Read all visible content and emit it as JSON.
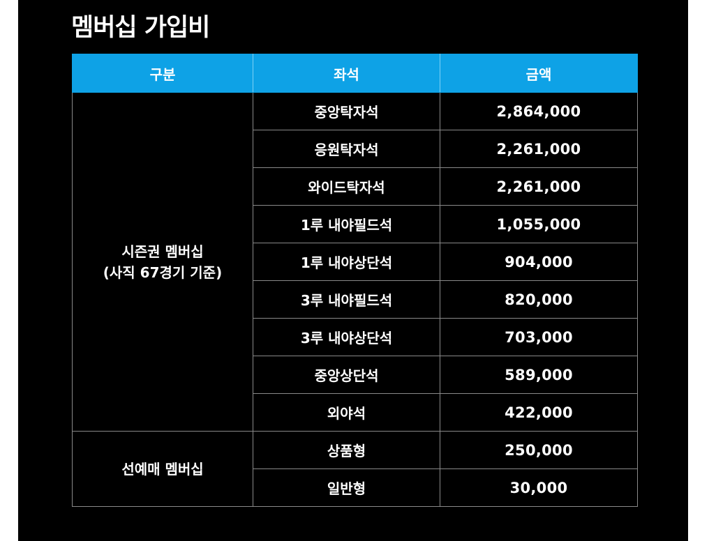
{
  "title": "멤버십 가입비",
  "table": {
    "headers": [
      "구분",
      "좌석",
      "금액"
    ],
    "groups": [
      {
        "category_lines": [
          "시즌권 멤버십",
          "(사직 67경기 기준)"
        ],
        "rows": [
          {
            "seat": "중앙탁자석",
            "price": "2,864,000"
          },
          {
            "seat": "응원탁자석",
            "price": "2,261,000"
          },
          {
            "seat": "와이드탁자석",
            "price": "2,261,000"
          },
          {
            "seat": "1루 내야필드석",
            "price": "1,055,000"
          },
          {
            "seat": "1루 내야상단석",
            "price": "904,000"
          },
          {
            "seat": "3루 내야필드석",
            "price": "820,000"
          },
          {
            "seat": "3루 내야상단석",
            "price": "703,000"
          },
          {
            "seat": "중앙상단석",
            "price": "589,000"
          },
          {
            "seat": "외야석",
            "price": "422,000"
          }
        ]
      },
      {
        "category_lines": [
          "선예매 멤버십"
        ],
        "rows": [
          {
            "seat": "상품형",
            "price": "250,000"
          },
          {
            "seat": "일반형",
            "price": "30,000"
          }
        ]
      }
    ]
  },
  "colors": {
    "background": "#000000",
    "header": "#0ea2e6",
    "text": "#ffffff",
    "border": "#8a8a8a"
  }
}
